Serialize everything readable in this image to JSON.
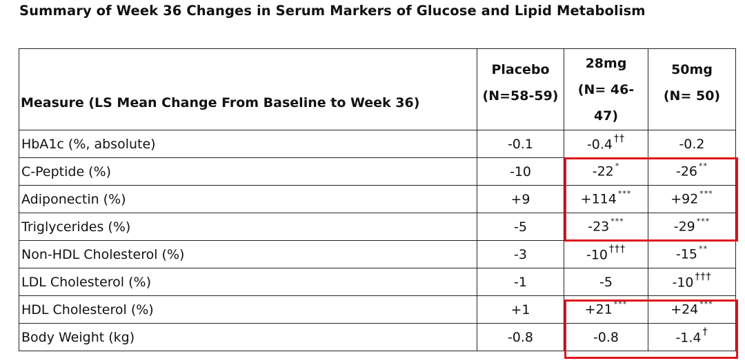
{
  "title": "Summary of Week 36 Changes in Serum Markers of Glucose and Lipid Metabolism",
  "table": {
    "header": {
      "measure": "Measure (LS Mean Change From Baseline to Week 36)",
      "placebo": "Placebo (N=58-59)",
      "dose28": "28mg (N= 46-47)",
      "dose50": "50mg (N= 50)"
    },
    "rows": [
      {
        "measure": "HbA1c (%, absolute)",
        "placebo": "-0.1",
        "dose28": "-0.4",
        "dose28_sig": "††",
        "dose50": "-0.2",
        "dose50_sig": ""
      },
      {
        "measure": "C-Peptide (%)",
        "placebo": "-10",
        "dose28": "-22",
        "dose28_sig": "*",
        "dose50": "-26",
        "dose50_sig": "**"
      },
      {
        "measure": "Adiponectin (%)",
        "placebo": "+9",
        "dose28": "+114",
        "dose28_sig": "***",
        "dose50": "+92",
        "dose50_sig": "***"
      },
      {
        "measure": "Triglycerides (%)",
        "placebo": "-5",
        "dose28": "-23",
        "dose28_sig": "***",
        "dose50": "-29",
        "dose50_sig": "***"
      },
      {
        "measure": "Non-HDL Cholesterol (%)",
        "placebo": "-3",
        "dose28": "-10",
        "dose28_sig": "†††",
        "dose50": "-15",
        "dose50_sig": "**"
      },
      {
        "measure": "LDL Cholesterol (%)",
        "placebo": "-1",
        "dose28": "-5",
        "dose28_sig": "",
        "dose50": "-10",
        "dose50_sig": "†††"
      },
      {
        "measure": "HDL Cholesterol (%)",
        "placebo": "+1",
        "dose28": "+21",
        "dose28_sig": "***",
        "dose50": "+24",
        "dose50_sig": "***"
      },
      {
        "measure": "Body Weight (kg)",
        "placebo": "-0.8",
        "dose28": "-0.8",
        "dose28_sig": "",
        "dose50": "-1.4",
        "dose50_sig": "†"
      }
    ]
  },
  "highlight_color": "#e0141c"
}
